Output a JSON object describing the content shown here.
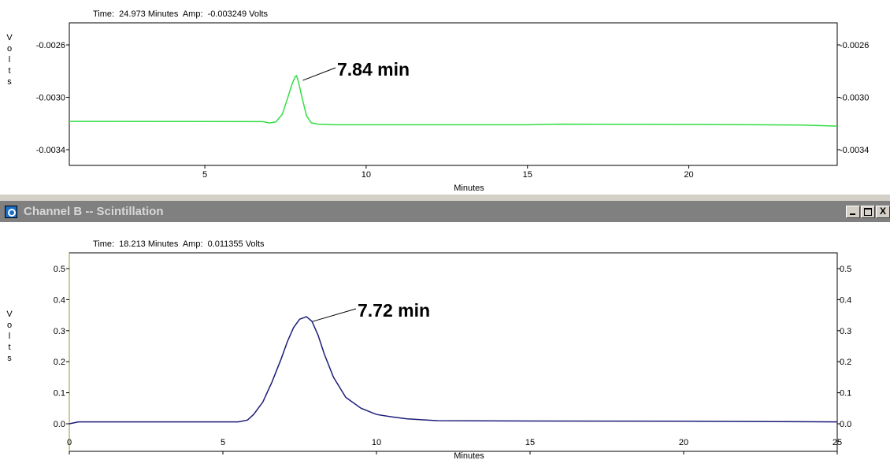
{
  "window": {
    "title": "Channel B -- Scintillation",
    "close_glyph": "X",
    "icon": "channel-icon"
  },
  "panels": {
    "a": {
      "readout": {
        "time_label": "Time:",
        "time_value": "24.973 Minutes",
        "amp_label": "Amp:",
        "amp_value": "-0.003249 Volts"
      }
    },
    "b": {
      "readout": {
        "time_label": "Time:",
        "time_value": "18.213 Minutes",
        "amp_label": "Amp:",
        "amp_value": "0.011355 Volts"
      }
    }
  },
  "chart_data": [
    {
      "type": "line",
      "color": "#33dd44",
      "ylabel": "Volts",
      "xlabel": "Minutes",
      "xlim": [
        0.8,
        24.6
      ],
      "ylim": [
        -0.0026,
        -0.0034
      ],
      "y_ticks": [
        -0.0026,
        -0.003,
        -0.0034
      ],
      "y_tick_labels": [
        "-0.0026",
        "-0.0030",
        "-0.0034"
      ],
      "x_ticks": [
        5,
        10,
        15,
        20
      ],
      "x_tick_labels": [
        "5",
        "10",
        "15",
        "20"
      ],
      "annotation": {
        "text": "7.84 min",
        "x": 7.84,
        "y": -0.002835
      },
      "x": [
        0.8,
        6.8,
        7.0,
        7.2,
        7.4,
        7.55,
        7.7,
        7.8,
        7.84,
        7.9,
        8.0,
        8.15,
        8.3,
        8.5,
        9.0,
        14.0,
        15.0,
        16.0,
        22.0,
        23.5,
        24.6
      ],
      "y": [
        -0.003184,
        -0.003186,
        -0.003196,
        -0.003188,
        -0.00313,
        -0.00302,
        -0.0029,
        -0.002843,
        -0.002835,
        -0.00288,
        -0.00299,
        -0.00314,
        -0.003195,
        -0.003205,
        -0.00321,
        -0.00321,
        -0.00321,
        -0.003205,
        -0.00321,
        -0.003212,
        -0.00322
      ]
    },
    {
      "type": "line",
      "color": "#1c1c7a",
      "ylabel": "Volts",
      "xlabel": "Minutes",
      "xlim": [
        0,
        25
      ],
      "ylim": [
        0,
        0.5
      ],
      "y_ticks": [
        0.0,
        0.1,
        0.2,
        0.3,
        0.4,
        0.5
      ],
      "y_tick_labels": [
        "0.0",
        "0.1",
        "0.2",
        "0.3",
        "0.4",
        "0.5"
      ],
      "x_ticks": [
        0,
        5,
        10,
        15,
        20,
        25
      ],
      "x_tick_labels": [
        "0",
        "5",
        "10",
        "15",
        "20",
        "25"
      ],
      "annotation": {
        "text": "7.72 min",
        "x": 7.72,
        "y": 0.345
      },
      "x": [
        0,
        0.3,
        5.5,
        5.8,
        6.0,
        6.3,
        6.6,
        6.9,
        7.1,
        7.3,
        7.5,
        7.72,
        7.9,
        8.1,
        8.3,
        8.6,
        9.0,
        9.5,
        10.0,
        10.5,
        11.0,
        12.0,
        15.0,
        20.0,
        23.0,
        25.0
      ],
      "y": [
        0.0,
        0.006,
        0.006,
        0.012,
        0.03,
        0.07,
        0.135,
        0.21,
        0.265,
        0.31,
        0.337,
        0.345,
        0.33,
        0.285,
        0.225,
        0.15,
        0.085,
        0.05,
        0.03,
        0.022,
        0.016,
        0.01,
        0.009,
        0.008,
        0.007,
        0.006
      ]
    }
  ]
}
